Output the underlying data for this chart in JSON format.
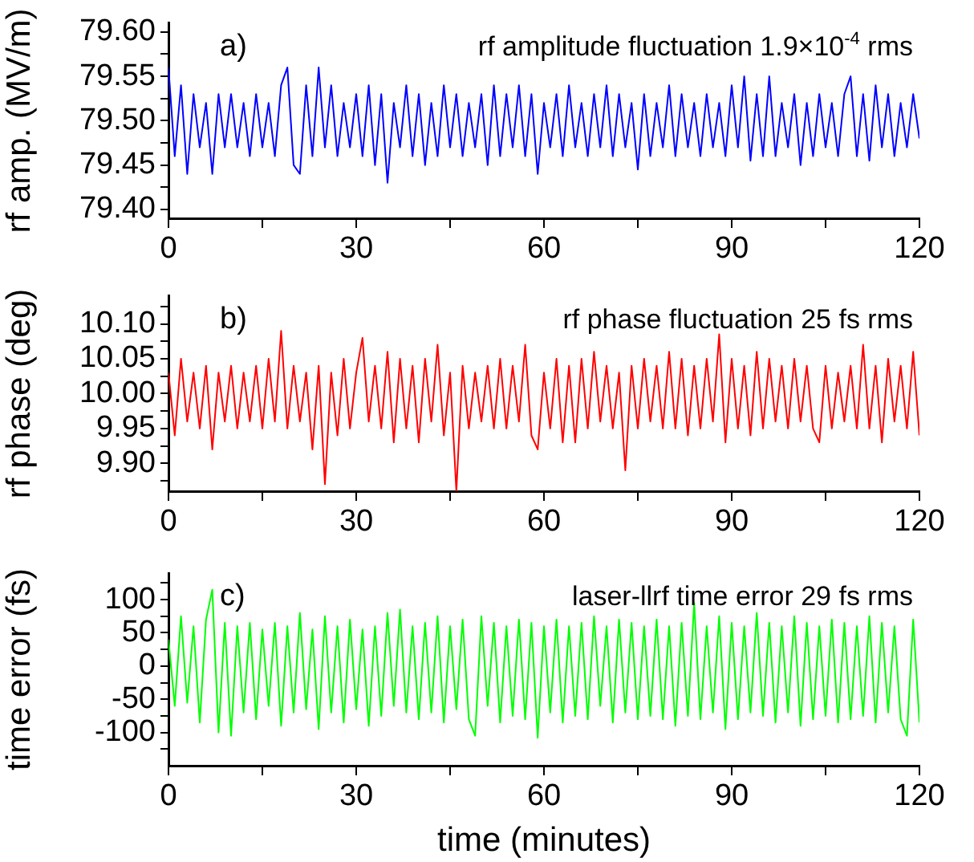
{
  "chart_data": [
    {
      "type": "line",
      "ylabel": "rf amp. (MV/m)",
      "annotations": [
        "a)",
        "rf amplitude fluctuation 1.9×10$^{-4}$ rms"
      ],
      "x": [
        0,
        1,
        2,
        3,
        4,
        5,
        6,
        7,
        8,
        9,
        10,
        11,
        12,
        13,
        14,
        15,
        16,
        17,
        18,
        19,
        20,
        21,
        22,
        23,
        24,
        25,
        26,
        27,
        28,
        29,
        30,
        31,
        32,
        33,
        34,
        35,
        36,
        37,
        38,
        39,
        40,
        41,
        42,
        43,
        44,
        45,
        46,
        47,
        48,
        49,
        50,
        51,
        52,
        53,
        54,
        55,
        56,
        57,
        58,
        59,
        60,
        61,
        62,
        63,
        64,
        65,
        66,
        67,
        68,
        69,
        70,
        71,
        72,
        73,
        74,
        75,
        76,
        77,
        78,
        79,
        80,
        81,
        82,
        83,
        84,
        85,
        86,
        87,
        88,
        89,
        90,
        91,
        92,
        93,
        94,
        95,
        96,
        97,
        98,
        99,
        100,
        101,
        102,
        103,
        104,
        105,
        106,
        107,
        108,
        109,
        110,
        111,
        112,
        113,
        114,
        115,
        116,
        117,
        118,
        119,
        120
      ],
      "series": [
        {
          "color": "#0000ff",
          "values": [
            79.56,
            79.46,
            79.54,
            79.44,
            79.53,
            79.47,
            79.52,
            79.44,
            79.53,
            79.47,
            79.53,
            79.47,
            79.52,
            79.46,
            79.53,
            79.47,
            79.52,
            79.46,
            79.54,
            79.56,
            79.45,
            79.44,
            79.54,
            79.46,
            79.56,
            79.47,
            79.54,
            79.46,
            79.52,
            79.47,
            79.53,
            79.46,
            79.54,
            79.45,
            79.53,
            79.43,
            79.52,
            79.47,
            79.54,
            79.46,
            79.53,
            79.45,
            79.52,
            79.46,
            79.54,
            79.47,
            79.53,
            79.46,
            79.52,
            79.47,
            79.53,
            79.45,
            79.54,
            79.46,
            79.53,
            79.47,
            79.54,
            79.46,
            79.53,
            79.44,
            79.52,
            79.47,
            79.53,
            79.46,
            79.54,
            79.47,
            79.52,
            79.46,
            79.53,
            79.47,
            79.54,
            79.46,
            79.53,
            79.47,
            79.52,
            79.445,
            79.53,
            79.46,
            79.52,
            79.47,
            79.54,
            79.46,
            79.53,
            79.47,
            79.52,
            79.46,
            79.53,
            79.47,
            79.52,
            79.46,
            79.54,
            79.47,
            79.55,
            79.455,
            79.53,
            79.46,
            79.55,
            79.46,
            79.52,
            79.47,
            79.53,
            79.45,
            79.52,
            79.46,
            79.53,
            79.47,
            79.52,
            79.46,
            79.53,
            79.55,
            79.46,
            79.53,
            79.455,
            79.54,
            79.47,
            79.53,
            79.46,
            79.52,
            79.47,
            79.53,
            79.48
          ]
        }
      ],
      "xlim": [
        0,
        120
      ],
      "xticks": [
        0,
        {
          "value": 15,
          "label": null
        },
        30,
        {
          "value": 45,
          "label": null
        },
        60,
        {
          "value": 75,
          "label": null
        },
        90,
        {
          "value": 105,
          "label": null
        },
        120
      ],
      "ylim": [
        79.39,
        79.61
      ],
      "yticks": [
        {
          "value": 79.4,
          "label": "79.40"
        },
        {
          "value": 79.425,
          "label": null
        },
        {
          "value": 79.45,
          "label": "79.45"
        },
        {
          "value": 79.475,
          "label": null
        },
        {
          "value": 79.5,
          "label": "79.50"
        },
        {
          "value": 79.525,
          "label": null
        },
        {
          "value": 79.55,
          "label": "79.55"
        },
        {
          "value": 79.575,
          "label": null
        },
        {
          "value": 79.6,
          "label": "79.60"
        }
      ]
    },
    {
      "type": "line",
      "ylabel": "rf phase (deg)",
      "annotations": [
        "b)",
        "rf phase fluctuation 25 fs rms"
      ],
      "x": [
        0,
        1,
        2,
        3,
        4,
        5,
        6,
        7,
        8,
        9,
        10,
        11,
        12,
        13,
        14,
        15,
        16,
        17,
        18,
        19,
        20,
        21,
        22,
        23,
        24,
        25,
        26,
        27,
        28,
        29,
        30,
        31,
        32,
        33,
        34,
        35,
        36,
        37,
        38,
        39,
        40,
        41,
        42,
        43,
        44,
        45,
        46,
        47,
        48,
        49,
        50,
        51,
        52,
        53,
        54,
        55,
        56,
        57,
        58,
        59,
        60,
        61,
        62,
        63,
        64,
        65,
        66,
        67,
        68,
        69,
        70,
        71,
        72,
        73,
        74,
        75,
        76,
        77,
        78,
        79,
        80,
        81,
        82,
        83,
        84,
        85,
        86,
        87,
        88,
        89,
        90,
        91,
        92,
        93,
        94,
        95,
        96,
        97,
        98,
        99,
        100,
        101,
        102,
        103,
        104,
        105,
        106,
        107,
        108,
        109,
        110,
        111,
        112,
        113,
        114,
        115,
        116,
        117,
        118,
        119,
        120
      ],
      "series": [
        {
          "color": "#ff0000",
          "values": [
            10.03,
            9.94,
            10.05,
            9.96,
            10.03,
            9.95,
            10.04,
            9.92,
            10.03,
            9.96,
            10.04,
            9.95,
            10.03,
            9.96,
            10.04,
            9.95,
            10.05,
            9.96,
            10.09,
            9.95,
            10.04,
            9.96,
            10.03,
            9.92,
            10.04,
            9.87,
            10.03,
            9.94,
            10.05,
            9.95,
            10.03,
            10.08,
            9.96,
            10.04,
            9.95,
            10.06,
            9.93,
            10.05,
            9.95,
            10.04,
            9.93,
            10.05,
            9.96,
            10.07,
            9.94,
            10.03,
            9.86,
            10.04,
            9.95,
            10.03,
            9.96,
            10.04,
            9.95,
            10.05,
            9.95,
            10.04,
            9.96,
            10.07,
            9.94,
            9.92,
            10.03,
            9.95,
            10.05,
            9.93,
            10.04,
            9.93,
            10.05,
            9.95,
            10.06,
            9.96,
            10.04,
            9.95,
            10.03,
            9.89,
            10.04,
            9.95,
            10.05,
            9.96,
            10.04,
            9.95,
            10.06,
            9.95,
            10.05,
            9.94,
            10.04,
            9.95,
            10.05,
            9.96,
            10.085,
            9.93,
            10.05,
            9.95,
            10.04,
            9.94,
            10.06,
            9.95,
            10.05,
            9.96,
            10.04,
            9.95,
            10.05,
            9.96,
            10.04,
            9.95,
            9.93,
            10.04,
            9.95,
            10.03,
            9.96,
            10.04,
            9.95,
            10.07,
            9.95,
            10.04,
            9.93,
            10.05,
            9.96,
            10.04,
            9.95,
            10.06,
            9.94
          ]
        }
      ],
      "xlim": [
        0,
        120
      ],
      "xticks": [
        0,
        {
          "value": 15,
          "label": null
        },
        30,
        {
          "value": 45,
          "label": null
        },
        60,
        {
          "value": 75,
          "label": null
        },
        90,
        {
          "value": 105,
          "label": null
        },
        120
      ],
      "ylim": [
        9.86,
        10.14
      ],
      "yticks": [
        {
          "value": 9.875,
          "label": null
        },
        {
          "value": 9.9,
          "label": "9.90"
        },
        {
          "value": 9.925,
          "label": null
        },
        {
          "value": 9.95,
          "label": "9.95"
        },
        {
          "value": 9.975,
          "label": null
        },
        {
          "value": 10,
          "label": "10.00"
        },
        {
          "value": 10.025,
          "label": null
        },
        {
          "value": 10.05,
          "label": "10.05"
        },
        {
          "value": 10.075,
          "label": null
        },
        {
          "value": 10.1,
          "label": "10.10"
        },
        {
          "value": 10.125,
          "label": null
        }
      ]
    },
    {
      "type": "line",
      "xlabel": "time (minutes)",
      "ylabel": "time error (fs)",
      "annotations": [
        "c)",
        "laser-llrf time error 29 fs rms"
      ],
      "x": [
        0,
        1,
        2,
        3,
        4,
        5,
        6,
        7,
        8,
        9,
        10,
        11,
        12,
        13,
        14,
        15,
        16,
        17,
        18,
        19,
        20,
        21,
        22,
        23,
        24,
        25,
        26,
        27,
        28,
        29,
        30,
        31,
        32,
        33,
        34,
        35,
        36,
        37,
        38,
        39,
        40,
        41,
        42,
        43,
        44,
        45,
        46,
        47,
        48,
        49,
        50,
        51,
        52,
        53,
        54,
        55,
        56,
        57,
        58,
        59,
        60,
        61,
        62,
        63,
        64,
        65,
        66,
        67,
        68,
        69,
        70,
        71,
        72,
        73,
        74,
        75,
        76,
        77,
        78,
        79,
        80,
        81,
        82,
        83,
        84,
        85,
        86,
        87,
        88,
        89,
        90,
        91,
        92,
        93,
        94,
        95,
        96,
        97,
        98,
        99,
        100,
        101,
        102,
        103,
        104,
        105,
        106,
        107,
        108,
        109,
        110,
        111,
        112,
        113,
        114,
        115,
        116,
        117,
        118,
        119,
        120
      ],
      "series": [
        {
          "color": "#00ff00",
          "values": [
            40,
            -60,
            75,
            -55,
            60,
            -85,
            70,
            115,
            -100,
            65,
            -105,
            60,
            -70,
            65,
            -80,
            55,
            -60,
            65,
            -90,
            60,
            -70,
            80,
            -65,
            55,
            -95,
            75,
            -70,
            60,
            -85,
            70,
            -65,
            55,
            -90,
            60,
            -75,
            80,
            -60,
            85,
            -70,
            60,
            -80,
            65,
            -70,
            75,
            -85,
            60,
            -65,
            70,
            -80,
            -105,
            75,
            -60,
            65,
            -85,
            60,
            -75,
            70,
            -80,
            65,
            -108,
            60,
            -70,
            70,
            -85,
            60,
            -75,
            65,
            -80,
            75,
            -60,
            60,
            -85,
            70,
            -70,
            65,
            -80,
            60,
            -75,
            70,
            -80,
            60,
            -90,
            65,
            -75,
            95,
            -80,
            60,
            -70,
            75,
            -95,
            65,
            -80,
            60,
            -70,
            80,
            -75,
            65,
            -85,
            60,
            -70,
            75,
            -90,
            65,
            -80,
            60,
            -75,
            70,
            -85,
            65,
            -80,
            60,
            -75,
            75,
            -85,
            65,
            -70,
            60,
            -80,
            -105,
            70,
            -85
          ]
        }
      ],
      "xlim": [
        0,
        120
      ],
      "xticks": [
        0,
        {
          "value": 15,
          "label": null
        },
        30,
        {
          "value": 45,
          "label": null
        },
        60,
        {
          "value": 75,
          "label": null
        },
        90,
        {
          "value": 105,
          "label": null
        },
        120
      ],
      "ylim": [
        -150,
        140
      ],
      "yticks": [
        {
          "value": -125,
          "label": null
        },
        -100,
        {
          "value": -75,
          "label": null
        },
        -50,
        {
          "value": -25,
          "label": null
        },
        0,
        {
          "value": 25,
          "label": null
        },
        50,
        {
          "value": 75,
          "label": null
        },
        100,
        {
          "value": 125,
          "label": null
        }
      ]
    }
  ]
}
